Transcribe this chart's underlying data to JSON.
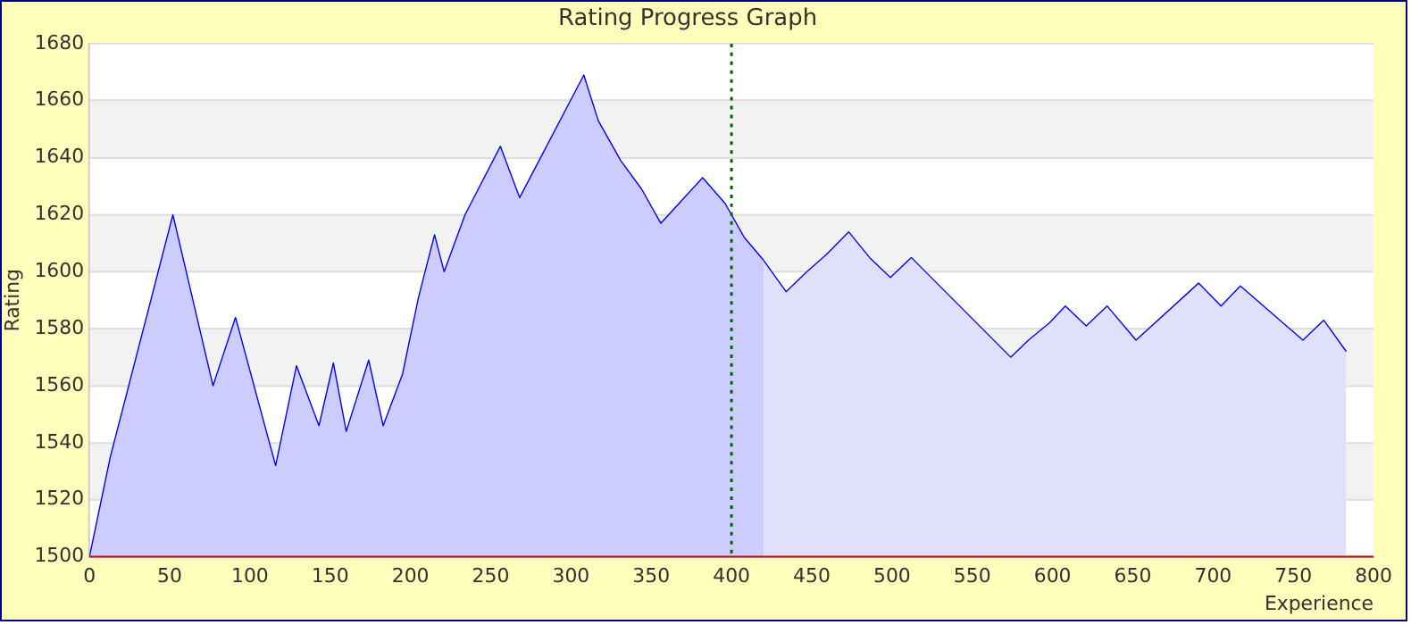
{
  "chart_data": {
    "type": "area",
    "title": "Rating Progress Graph",
    "xlabel": "Experience",
    "ylabel": "Rating",
    "xlim": [
      0,
      800
    ],
    "xticks": [
      0,
      50,
      100,
      150,
      200,
      250,
      300,
      350,
      400,
      450,
      500,
      550,
      600,
      650,
      700,
      750,
      800
    ],
    "ylim": [
      1500,
      1680
    ],
    "yticks": [
      1500,
      1520,
      1540,
      1560,
      1580,
      1600,
      1620,
      1640,
      1660,
      1680
    ],
    "grid": "y",
    "legend": false,
    "marker": "none",
    "line_style": "solid",
    "ref_lines": [
      {
        "axis": "x",
        "value": 400,
        "color": "#006600",
        "line_style": "dotted"
      }
    ],
    "series": [
      {
        "color": "#ccccff",
        "x": [
          0,
          13,
          52,
          77,
          91,
          116,
          129,
          143,
          152,
          160,
          174,
          183,
          195,
          205,
          215,
          221,
          234,
          256,
          268,
          282,
          308,
          317,
          331,
          344,
          356,
          382,
          396,
          408,
          420
        ],
        "values": [
          1500,
          1535,
          1620,
          1560,
          1584,
          1532,
          1567,
          1546,
          1568,
          1544,
          1569,
          1546,
          1564,
          1591,
          1613,
          1600,
          1620,
          1644,
          1626,
          1641,
          1669,
          1653,
          1639,
          1629,
          1617,
          1633,
          1624,
          1612,
          1604
        ]
      },
      {
        "color": "#e0e0fc",
        "x": [
          420,
          434,
          447,
          459,
          473,
          486,
          499,
          512,
          574,
          585,
          598,
          608,
          621,
          634,
          652,
          691,
          705,
          717,
          756,
          769,
          783
        ],
        "values": [
          1604,
          1593,
          1600,
          1606,
          1614,
          1605,
          1598,
          1605,
          1570,
          1576,
          1582,
          1588,
          1581,
          1588,
          1576,
          1596,
          1588,
          1595,
          1576,
          1583,
          1572
        ]
      }
    ]
  }
}
